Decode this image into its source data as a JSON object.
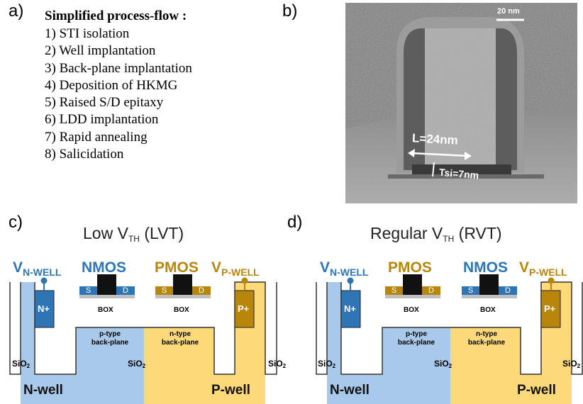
{
  "panels": {
    "a": "a)",
    "b": "b)",
    "c": "c)",
    "d": "d)"
  },
  "process_flow": {
    "title": "Simplified process-flow :",
    "steps": [
      "1) STI isolation",
      "2) Well implantation",
      "3) Back-plane implantation",
      "4) Deposition of HKMG",
      "5) Raised S/D epitaxy",
      "6) LDD implantation",
      "7) Rapid annealing",
      "8) Salicidation"
    ]
  },
  "tem": {
    "scale_bar": "20 nm",
    "length_label": "L=24nm",
    "tsi_label": "Tsi=7nm"
  },
  "lvt": {
    "title_main": "Low V",
    "title_sub": "TH",
    "title_suffix": " (LVT)",
    "v_left_main": "V",
    "v_left_sub": "N-WELL",
    "v_right_main": "V",
    "v_right_sub": "P-WELL",
    "device_left": "NMOS",
    "device_right": "PMOS",
    "contact_left": "N+",
    "contact_right": "P+",
    "box": "BOX",
    "bp_left_1": "p-type",
    "bp_left_2": "back-plane",
    "bp_right_1": "n-type",
    "bp_right_2": "back-plane",
    "well_left": "N-well",
    "well_right": "P-well",
    "sio2_main": "SiO",
    "sio2_sub": "2",
    "s": "S",
    "d": "D"
  },
  "rvt": {
    "title_main": "Regular V",
    "title_sub": "TH",
    "title_suffix": " (RVT)",
    "v_left_main": "V",
    "v_left_sub": "N-WELL",
    "v_right_main": "V",
    "v_right_sub": "P-WELL",
    "device_left": "PMOS",
    "device_right": "NMOS",
    "contact_left": "N+",
    "contact_right": "P+",
    "box": "BOX",
    "bp_left_1": "p-type",
    "bp_left_2": "back-plane",
    "bp_right_1": "n-type",
    "bp_right_2": "back-plane",
    "well_left": "N-well",
    "well_right": "P-well",
    "sio2_main": "SiO",
    "sio2_sub": "2",
    "s": "S",
    "d": "D"
  },
  "colors": {
    "blue_well": "#a9c9ea",
    "gold_well": "#fdd97a",
    "n_plus": "#2e75b6",
    "p_plus": "#b8860b",
    "gate": "#111111"
  }
}
